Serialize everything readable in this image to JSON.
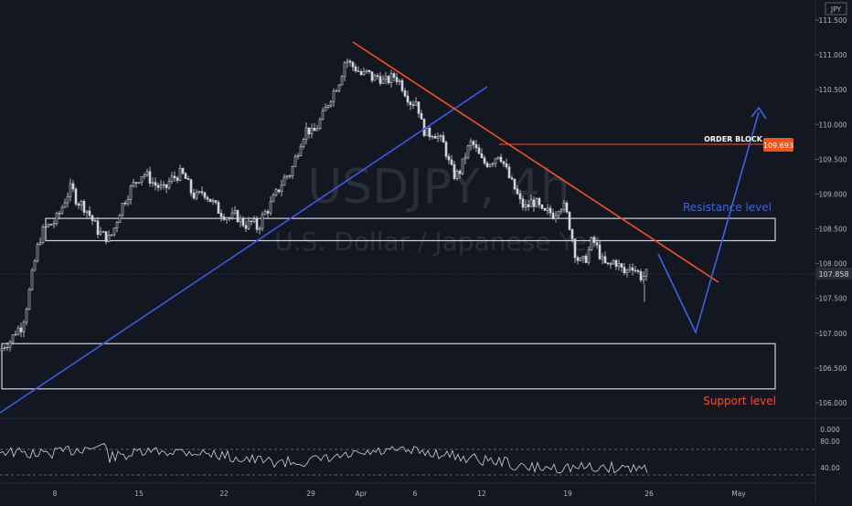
{
  "currency_badge": "JPY",
  "watermark": {
    "symbol": "USDJPY, 4h",
    "description": "U.S. Dollar / Japanese Yen"
  },
  "annotations": {
    "order_block": "ORDER BLOCK",
    "order_block_price": "109.693",
    "resistance": "Resistance level",
    "support": "Support level",
    "last_price": "107.858"
  },
  "colors": {
    "background": "#131722",
    "candle": "#d1d4dc",
    "trendline_blue": "#3d5ae0",
    "trendline_orange": "#f4511e",
    "zone_border": "#d1d4dc",
    "axis_text": "#b2b5be",
    "projection": "#3d63dd",
    "support_text": "#f4511e",
    "resistance_text": "#3d63dd"
  },
  "chart_data": [
    {
      "type": "candlestick",
      "title": "",
      "price_axis": {
        "ticks": [
          "111.500",
          "111.000",
          "110.500",
          "110.000",
          "109.500",
          "109.000",
          "108.500",
          "108.000",
          "107.500",
          "107.000",
          "106.500",
          "106.000"
        ],
        "range": [
          105.85,
          111.7
        ]
      },
      "time_axis": {
        "ticks": [
          "8",
          "15",
          "22",
          "29",
          "Apr",
          "6",
          "12",
          "19",
          "26",
          "May"
        ]
      },
      "close_path": [
        [
          0,
          106.75
        ],
        [
          6,
          106.85
        ],
        [
          12,
          106.9
        ],
        [
          18,
          107.05
        ],
        [
          24,
          107.1
        ],
        [
          30,
          107.45
        ],
        [
          36,
          107.9
        ],
        [
          42,
          108.3
        ],
        [
          48,
          108.5
        ],
        [
          54,
          108.55
        ],
        [
          60,
          108.6
        ],
        [
          66,
          108.75
        ],
        [
          72,
          108.95
        ],
        [
          78,
          109.1
        ],
        [
          84,
          108.9
        ],
        [
          90,
          108.85
        ],
        [
          96,
          108.75
        ],
        [
          102,
          108.6
        ],
        [
          108,
          108.45
        ],
        [
          114,
          108.4
        ],
        [
          120,
          108.35
        ],
        [
          126,
          108.55
        ],
        [
          132,
          108.8
        ],
        [
          138,
          108.95
        ],
        [
          144,
          109.1
        ],
        [
          150,
          109.2
        ],
        [
          156,
          109.3
        ],
        [
          162,
          109.25
        ],
        [
          168,
          109.15
        ],
        [
          174,
          109.1
        ],
        [
          180,
          109.05
        ],
        [
          186,
          109.2
        ],
        [
          192,
          109.25
        ],
        [
          198,
          109.3
        ],
        [
          204,
          109.2
        ],
        [
          210,
          109.0
        ],
        [
          216,
          108.95
        ],
        [
          222,
          109.05
        ],
        [
          228,
          108.95
        ],
        [
          234,
          108.85
        ],
        [
          240,
          108.75
        ],
        [
          246,
          108.7
        ],
        [
          252,
          108.65
        ],
        [
          258,
          108.7
        ],
        [
          264,
          108.6
        ],
        [
          270,
          108.55
        ],
        [
          276,
          108.6
        ],
        [
          282,
          108.5
        ],
        [
          288,
          108.7
        ],
        [
          294,
          108.8
        ],
        [
          300,
          108.95
        ],
        [
          306,
          109.1
        ],
        [
          312,
          109.25
        ],
        [
          318,
          109.3
        ],
        [
          324,
          109.55
        ],
        [
          330,
          109.8
        ],
        [
          336,
          109.95
        ],
        [
          342,
          109.85
        ],
        [
          348,
          110.0
        ],
        [
          354,
          110.15
        ],
        [
          360,
          110.35
        ],
        [
          366,
          110.5
        ],
        [
          372,
          110.65
        ],
        [
          378,
          110.95
        ],
        [
          384,
          110.85
        ],
        [
          390,
          110.8
        ],
        [
          396,
          110.7
        ],
        [
          402,
          110.75
        ],
        [
          408,
          110.65
        ],
        [
          414,
          110.7
        ],
        [
          420,
          110.6
        ],
        [
          426,
          110.65
        ],
        [
          432,
          110.7
        ],
        [
          438,
          110.6
        ],
        [
          444,
          110.45
        ],
        [
          450,
          110.3
        ],
        [
          456,
          110.35
        ],
        [
          462,
          109.95
        ],
        [
          468,
          109.85
        ],
        [
          474,
          109.9
        ],
        [
          480,
          109.8
        ],
        [
          486,
          109.7
        ],
        [
          492,
          109.4
        ],
        [
          498,
          109.25
        ],
        [
          504,
          109.35
        ],
        [
          510,
          109.6
        ],
        [
          516,
          109.75
        ],
        [
          522,
          109.6
        ],
        [
          528,
          109.45
        ],
        [
          534,
          109.45
        ],
        [
          540,
          109.5
        ],
        [
          546,
          109.6
        ],
        [
          552,
          109.4
        ],
        [
          558,
          109.2
        ],
        [
          564,
          109.05
        ],
        [
          570,
          108.85
        ],
        [
          576,
          108.8
        ],
        [
          582,
          108.9
        ],
        [
          588,
          108.85
        ],
        [
          594,
          108.7
        ],
        [
          600,
          108.75
        ],
        [
          606,
          108.7
        ],
        [
          612,
          108.85
        ],
        [
          618,
          108.8
        ],
        [
          624,
          108.5
        ],
        [
          630,
          108.1
        ],
        [
          636,
          108.0
        ],
        [
          642,
          108.1
        ],
        [
          648,
          108.35
        ],
        [
          654,
          108.2
        ],
        [
          660,
          108.0
        ],
        [
          666,
          107.95
        ],
        [
          672,
          108.05
        ],
        [
          678,
          107.95
        ],
        [
          684,
          107.85
        ],
        [
          690,
          108.0
        ],
        [
          696,
          107.9
        ],
        [
          702,
          107.8
        ],
        [
          708,
          107.86
        ]
      ],
      "zones": [
        {
          "name": "Resistance level",
          "low": 108.33,
          "high": 108.65
        },
        {
          "name": "Support level",
          "low": 106.2,
          "high": 106.85
        }
      ],
      "order_block_level": 109.693,
      "rsi_levels": [
        "80.00",
        "40.00"
      ],
      "rsi_top_label": "0.000"
    }
  ]
}
